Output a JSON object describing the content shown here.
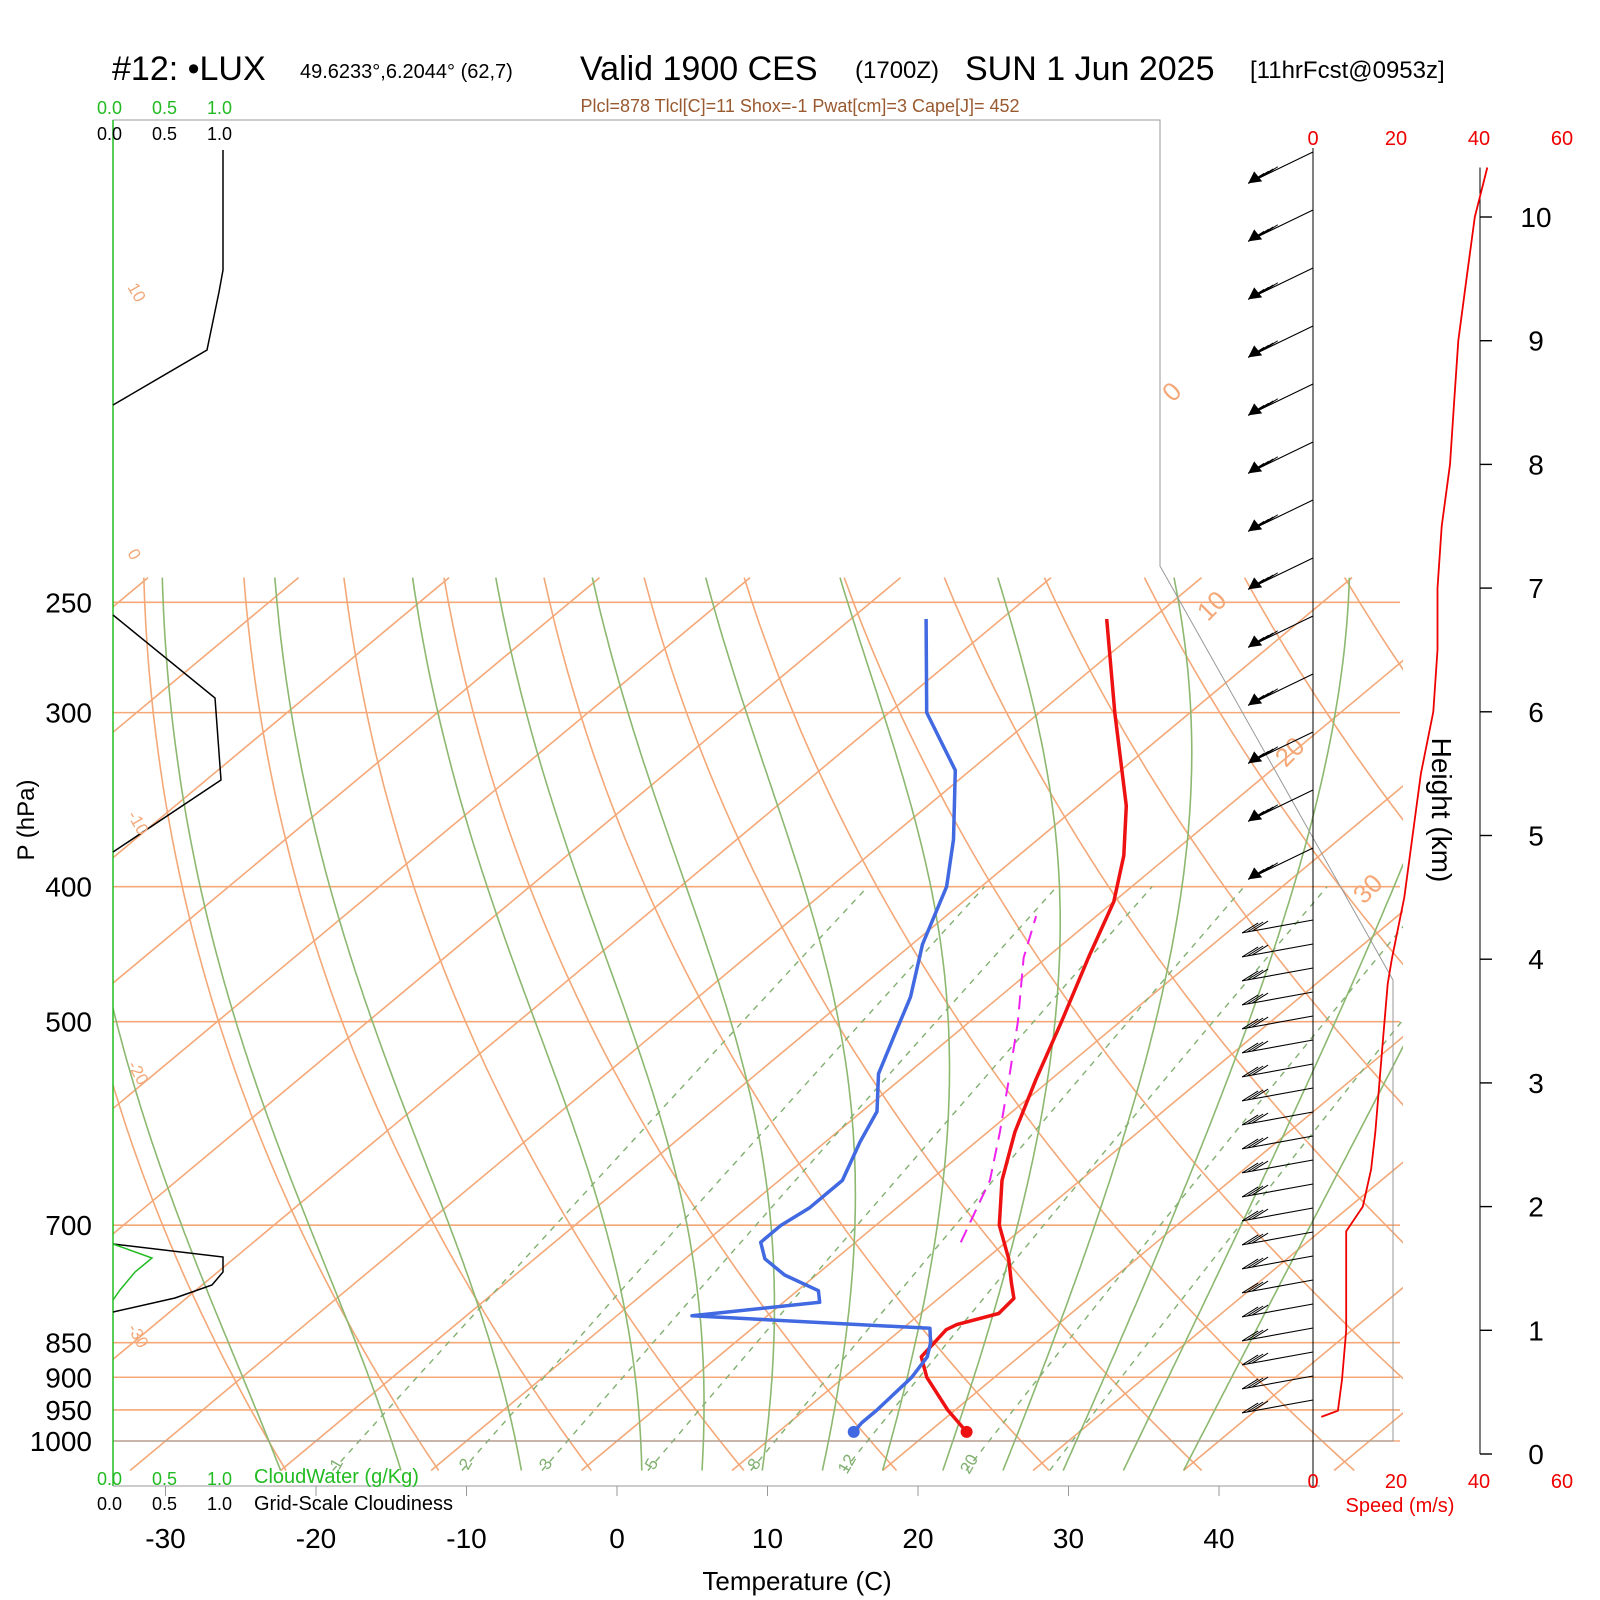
{
  "header": {
    "station": "#12: •LUX",
    "coords": "49.6233°,6.2044° (62,7)",
    "valid": "Valid 1900 CES",
    "zulu": "(1700Z)",
    "date": "SUN 1 Jun 2025",
    "forecast": "[11hrFcst@0953z]",
    "indices": "Plcl=878 Tlcl[C]=11 Shox=-1 Pwat[cm]=3 Cape[J]= 452"
  },
  "chart_data": {
    "type": "skew-t",
    "xlabel": "Temperature (C)",
    "ylabel": "P (hPa)",
    "y2label": "Height (km)",
    "x_ticks": [
      "-30",
      "-20",
      "-10",
      "0",
      "10",
      "20",
      "30",
      "40"
    ],
    "p_ticks": [
      "250",
      "300",
      "400",
      "500",
      "700",
      "850",
      "900",
      "950",
      "1000"
    ],
    "height_ticks": [
      "0",
      "1",
      "2",
      "3",
      "4",
      "5",
      "6",
      "7",
      "8",
      "9",
      "10"
    ],
    "isotherm_labels": [
      "-30",
      "-20",
      "-10",
      "0",
      "10",
      "20",
      "30"
    ],
    "mixing_ratio_labels": [
      "1",
      "2",
      "3",
      "5",
      "8",
      "12",
      "20"
    ],
    "temperature": {
      "color": "#ee1111",
      "points": [
        [
          985,
          22.5
        ],
        [
          950,
          19.5
        ],
        [
          900,
          15.5
        ],
        [
          870,
          13.5
        ],
        [
          832,
          13.0
        ],
        [
          825,
          13.3
        ],
        [
          810,
          15.2
        ],
        [
          790,
          15.0
        ],
        [
          770,
          13.6
        ],
        [
          740,
          11.5
        ],
        [
          700,
          8.2
        ],
        [
          650,
          4.8
        ],
        [
          600,
          1.8
        ],
        [
          550,
          -1.0
        ],
        [
          500,
          -3.9
        ],
        [
          450,
          -7.2
        ],
        [
          410,
          -10.0
        ],
        [
          380,
          -13.0
        ],
        [
          350,
          -16.8
        ],
        [
          300,
          -25.0
        ],
        [
          257,
          -33.0
        ]
      ]
    },
    "dewpoint": {
      "color": "#4169e1",
      "points": [
        [
          985,
          15.0
        ],
        [
          970,
          14.8
        ],
        [
          950,
          14.8
        ],
        [
          900,
          14.5
        ],
        [
          870,
          13.9
        ],
        [
          850,
          13.0
        ],
        [
          830,
          11.8
        ],
        [
          813,
          -5.0
        ],
        [
          795,
          2.4
        ],
        [
          780,
          1.4
        ],
        [
          760,
          -2.1
        ],
        [
          740,
          -4.7
        ],
        [
          720,
          -6.3
        ],
        [
          700,
          -6.3
        ],
        [
          680,
          -5.8
        ],
        [
          650,
          -5.8
        ],
        [
          610,
          -7.7
        ],
        [
          580,
          -9.0
        ],
        [
          545,
          -11.9
        ],
        [
          510,
          -14.0
        ],
        [
          480,
          -15.9
        ],
        [
          440,
          -19.3
        ],
        [
          400,
          -22.3
        ],
        [
          370,
          -25.6
        ],
        [
          330,
          -31.0
        ],
        [
          300,
          -37.5
        ],
        [
          257,
          -45.0
        ]
      ]
    },
    "parcel": {
      "color": "#ee22ee",
      "points": [
        [
          720,
          7.0
        ],
        [
          650,
          4.0
        ],
        [
          600,
          0.8
        ],
        [
          550,
          -2.8
        ],
        [
          500,
          -6.8
        ],
        [
          450,
          -11.5
        ],
        [
          420,
          -14.0
        ]
      ]
    },
    "wind_speed": {
      "label": "Speed (m/s)",
      "ticks": [
        "0",
        "20",
        "40",
        "60"
      ],
      "points": [
        [
          0.3,
          2
        ],
        [
          0.35,
          6
        ],
        [
          0.6,
          7
        ],
        [
          1.0,
          8
        ],
        [
          1.5,
          8
        ],
        [
          1.8,
          8
        ],
        [
          2.0,
          12
        ],
        [
          2.3,
          14
        ],
        [
          2.6,
          15
        ],
        [
          3.0,
          16
        ],
        [
          3.4,
          17
        ],
        [
          3.8,
          18
        ],
        [
          4.0,
          19
        ],
        [
          4.5,
          22
        ],
        [
          5.0,
          24
        ],
        [
          5.5,
          26
        ],
        [
          6.0,
          29
        ],
        [
          6.5,
          30
        ],
        [
          7.0,
          30
        ],
        [
          7.5,
          31
        ],
        [
          8.0,
          33
        ],
        [
          8.5,
          34
        ],
        [
          9.0,
          35
        ],
        [
          9.5,
          37
        ],
        [
          10.0,
          39
        ],
        [
          10.4,
          42
        ]
      ]
    }
  },
  "side_panel": {
    "green_ticks": [
      "0.0",
      "0.5",
      "1.0"
    ],
    "black_ticks": [
      "0.0",
      "0.5",
      "1.0"
    ],
    "cloud_water_label": "CloudWater (g/Kg)",
    "cloudiness_label": "Grid-Scale Cloudiness"
  },
  "colors": {
    "isotherm": "#f4a878",
    "moist_adiabat": "#8cb870",
    "mixing_ratio": "#80b070",
    "temperature": "#ee1111",
    "dewpoint": "#4169e1",
    "parcel": "#ee22ee",
    "cloud_water": "#22bb22",
    "speed_axis": "#ee0000",
    "indices_text": "#9a5a30"
  }
}
